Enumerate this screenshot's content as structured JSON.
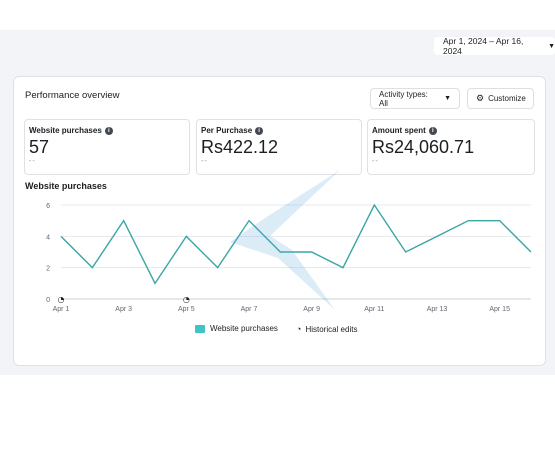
{
  "header": {
    "date_range": "Apr 1, 2024 – Apr 16, 2024"
  },
  "overview": {
    "title": "Performance overview",
    "activity_types_label": "Activity types: All",
    "customize_label": "Customize"
  },
  "metrics": [
    {
      "label": "Website purchases",
      "value": "57",
      "sub": "--"
    },
    {
      "label": "Per Purchase",
      "value": "Rs422.12",
      "sub": "--"
    },
    {
      "label": "Amount spent",
      "value": "Rs24,060.71",
      "sub": "--"
    }
  ],
  "chart_data": {
    "type": "line",
    "title": "Website purchases",
    "x": [
      "Apr 1",
      "Apr 2",
      "Apr 3",
      "Apr 4",
      "Apr 5",
      "Apr 6",
      "Apr 7",
      "Apr 8",
      "Apr 9",
      "Apr 10",
      "Apr 11",
      "Apr 12",
      "Apr 13",
      "Apr 14",
      "Apr 15",
      "Apr 16"
    ],
    "xtick_labels": [
      "Apr 1",
      "Apr 3",
      "Apr 5",
      "Apr 7",
      "Apr 9",
      "Apr 11",
      "Apr 13",
      "Apr 15"
    ],
    "series": [
      {
        "name": "Website purchases",
        "values": [
          4,
          2,
          5,
          1,
          4,
          2,
          5,
          3,
          3,
          2,
          6,
          3,
          4,
          5,
          5,
          3
        ]
      }
    ],
    "yticks": [
      0,
      2,
      4,
      6
    ],
    "ylim": [
      0,
      6
    ],
    "grid": true,
    "historical_edit_days": [
      "Apr 1",
      "Apr 5"
    ],
    "legend": [
      "Website purchases",
      "Historical edits"
    ],
    "legend_position": "bottom-center",
    "line_color": "#3aa5a5"
  }
}
